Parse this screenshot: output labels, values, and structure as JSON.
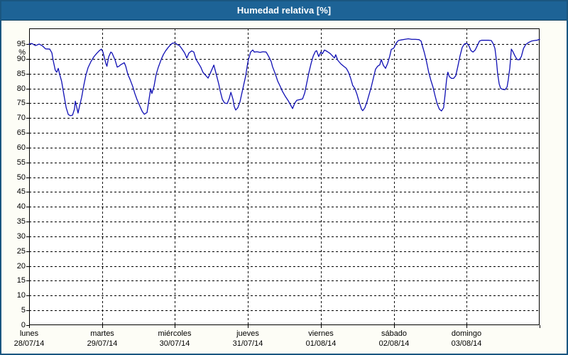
{
  "window": {
    "title": "Humedad relativa [%]"
  },
  "chart_data": {
    "type": "line",
    "title": "Humedad relativa [%]",
    "ylabel": "%",
    "xlabel": "",
    "ylim": [
      0,
      100.3
    ],
    "x_range_hours": [
      0,
      168
    ],
    "grid": "dashed",
    "legend": "none",
    "line_color": "#0f0fb4",
    "y_tick_labels": [
      0,
      5,
      10,
      15,
      20,
      25,
      30,
      35,
      40,
      45,
      50,
      55,
      60,
      65,
      70,
      75,
      80,
      85,
      90,
      95
    ],
    "x_days": [
      {
        "name": "lunes",
        "date": "28/07/14"
      },
      {
        "name": "martes",
        "date": "29/07/14"
      },
      {
        "name": "miércoles",
        "date": "30/07/14"
      },
      {
        "name": "jueves",
        "date": "31/07/14"
      },
      {
        "name": "viernes",
        "date": "01/08/14"
      },
      {
        "name": "sábado",
        "date": "02/08/14"
      },
      {
        "name": "domingo",
        "date": "03/08/14"
      }
    ],
    "series": [
      {
        "name": "Humedad relativa",
        "points": [
          [
            0,
            95
          ],
          [
            0.9,
            95.2
          ],
          [
            2.1,
            94.5
          ],
          [
            3.3,
            95
          ],
          [
            4.4,
            94.4
          ],
          [
            5.4,
            93.4
          ],
          [
            6.8,
            93.3
          ],
          [
            7.5,
            92
          ],
          [
            7.9,
            89.6
          ],
          [
            8.6,
            86.2
          ],
          [
            9.1,
            85.5
          ],
          [
            9.6,
            86.8
          ],
          [
            10,
            85
          ],
          [
            10.7,
            82.4
          ],
          [
            11.5,
            77.6
          ],
          [
            12.2,
            73.5
          ],
          [
            12.9,
            71.2
          ],
          [
            13.6,
            70.8
          ],
          [
            14.3,
            71
          ],
          [
            14.9,
            73
          ],
          [
            15.2,
            75.7
          ],
          [
            15.7,
            73.5
          ],
          [
            16.1,
            71.7
          ],
          [
            16.6,
            74
          ],
          [
            17.3,
            77
          ],
          [
            18,
            81
          ],
          [
            18.7,
            84.5
          ],
          [
            19.4,
            87
          ],
          [
            20.3,
            89
          ],
          [
            21.3,
            90.7
          ],
          [
            22.2,
            91.8
          ],
          [
            23.1,
            92.8
          ],
          [
            23.8,
            93.3
          ],
          [
            24.3,
            92.3
          ],
          [
            24.8,
            90.3
          ],
          [
            25.3,
            88.3
          ],
          [
            25.6,
            87.5
          ],
          [
            26.2,
            90.7
          ],
          [
            26.9,
            92.3
          ],
          [
            27.3,
            92
          ],
          [
            28.3,
            89.6
          ],
          [
            29,
            87.2
          ],
          [
            29.7,
            87.6
          ],
          [
            30.1,
            88
          ],
          [
            31.3,
            88.7
          ],
          [
            31.8,
            87.5
          ],
          [
            32.5,
            84.7
          ],
          [
            33.2,
            83.1
          ],
          [
            34.1,
            80.7
          ],
          [
            34.8,
            78.3
          ],
          [
            35.5,
            76.3
          ],
          [
            36.5,
            73.9
          ],
          [
            37.2,
            72.3
          ],
          [
            37.9,
            71.3
          ],
          [
            38.8,
            71.9
          ],
          [
            40,
            79.9
          ],
          [
            40.4,
            78.3
          ],
          [
            41.1,
            80.7
          ],
          [
            41.8,
            84.7
          ],
          [
            42.5,
            87.1
          ],
          [
            43.5,
            89.9
          ],
          [
            44.2,
            91.5
          ],
          [
            44.9,
            92.7
          ],
          [
            45.8,
            93.9
          ],
          [
            46.5,
            94.7
          ],
          [
            47.2,
            95.3
          ],
          [
            48,
            95.4
          ],
          [
            48.8,
            94.8
          ],
          [
            49.5,
            94.5
          ],
          [
            50.2,
            93.5
          ],
          [
            51.2,
            92
          ],
          [
            51.9,
            90.3
          ],
          [
            52.6,
            92
          ],
          [
            53.5,
            92.7
          ],
          [
            54.2,
            92.3
          ],
          [
            54.9,
            89.9
          ],
          [
            55.8,
            88.4
          ],
          [
            56.5,
            87.2
          ],
          [
            57.2,
            85.5
          ],
          [
            58.2,
            84.3
          ],
          [
            58.9,
            83.5
          ],
          [
            59.6,
            85.1
          ],
          [
            60.5,
            87.2
          ],
          [
            60.8,
            87.9
          ],
          [
            61.7,
            84.3
          ],
          [
            62.4,
            81.5
          ],
          [
            62.9,
            79.1
          ],
          [
            63.6,
            76.3
          ],
          [
            64.3,
            75.1
          ],
          [
            65.2,
            74.9
          ],
          [
            65.9,
            76.7
          ],
          [
            66.4,
            78.7
          ],
          [
            67.1,
            76.3
          ],
          [
            67.5,
            73.9
          ],
          [
            68,
            72.7
          ],
          [
            68.7,
            73.5
          ],
          [
            69.4,
            75.5
          ],
          [
            69.9,
            77.9
          ],
          [
            70.6,
            81.2
          ],
          [
            71.3,
            84.3
          ],
          [
            71.7,
            87.2
          ],
          [
            72.2,
            89.9
          ],
          [
            72.9,
            92.3
          ],
          [
            73.6,
            93
          ],
          [
            74.1,
            92.3
          ],
          [
            75,
            92.4
          ],
          [
            76,
            92.2
          ],
          [
            77,
            92.4
          ],
          [
            78,
            92.3
          ],
          [
            78.3,
            91.8
          ],
          [
            79,
            90.5
          ],
          [
            79.7,
            89
          ],
          [
            80.1,
            87.4
          ],
          [
            81.1,
            84.7
          ],
          [
            81.8,
            82.5
          ],
          [
            82.5,
            81
          ],
          [
            83.4,
            79
          ],
          [
            84.4,
            77.2
          ],
          [
            85.3,
            75.8
          ],
          [
            86,
            74.5
          ],
          [
            86.7,
            73.2
          ],
          [
            87.4,
            75
          ],
          [
            88.1,
            76
          ],
          [
            89,
            76.2
          ],
          [
            90,
            76.5
          ],
          [
            90.7,
            78.5
          ],
          [
            91.4,
            82
          ],
          [
            92.1,
            85.5
          ],
          [
            92.8,
            88.5
          ],
          [
            93.5,
            91
          ],
          [
            94.2,
            92.5
          ],
          [
            94.6,
            92.8
          ],
          [
            95.3,
            90.8
          ],
          [
            96,
            92.3
          ],
          [
            96.5,
            91.7
          ],
          [
            97.2,
            93
          ],
          [
            98.1,
            92.5
          ],
          [
            99.1,
            91.8
          ],
          [
            100,
            90.8
          ],
          [
            100.5,
            90.3
          ],
          [
            100.9,
            91.4
          ],
          [
            101.6,
            89.5
          ],
          [
            102.6,
            88.3
          ],
          [
            103.5,
            87.5
          ],
          [
            104.4,
            86.8
          ],
          [
            105.1,
            85.5
          ],
          [
            105.8,
            83.5
          ],
          [
            106.5,
            81
          ],
          [
            107.2,
            80
          ],
          [
            107.9,
            78
          ],
          [
            108.6,
            75.5
          ],
          [
            109.4,
            73
          ],
          [
            109.8,
            72.5
          ],
          [
            110.5,
            73.5
          ],
          [
            111.2,
            75.5
          ],
          [
            111.9,
            78
          ],
          [
            112.6,
            80.5
          ],
          [
            113.3,
            83.5
          ],
          [
            114,
            86.5
          ],
          [
            114.7,
            87.5
          ],
          [
            115.4,
            88
          ],
          [
            115.9,
            89.8
          ],
          [
            116.6,
            87.8
          ],
          [
            117.3,
            86.8
          ],
          [
            118,
            88.5
          ],
          [
            118.7,
            91
          ],
          [
            119.2,
            93.2
          ],
          [
            120,
            93.6
          ],
          [
            120.8,
            95.3
          ],
          [
            121.5,
            96.2
          ],
          [
            122.4,
            96.4
          ],
          [
            123.6,
            96.6
          ],
          [
            124.8,
            96.8
          ],
          [
            125.9,
            96.6
          ],
          [
            127.1,
            96.6
          ],
          [
            128.3,
            96.5
          ],
          [
            129,
            96
          ],
          [
            129.4,
            94.5
          ],
          [
            130.1,
            92
          ],
          [
            130.8,
            89
          ],
          [
            131.5,
            85.5
          ],
          [
            132.2,
            82.8
          ],
          [
            132.9,
            80.5
          ],
          [
            133.6,
            77.5
          ],
          [
            134.3,
            74.8
          ],
          [
            135,
            73
          ],
          [
            135.7,
            72.4
          ],
          [
            136.4,
            73.5
          ],
          [
            136.9,
            78
          ],
          [
            137.4,
            83
          ],
          [
            137.8,
            85.5
          ],
          [
            138.3,
            84
          ],
          [
            139,
            83.4
          ],
          [
            139.7,
            83.4
          ],
          [
            140.4,
            84.3
          ],
          [
            141.1,
            87.5
          ],
          [
            141.8,
            91
          ],
          [
            142.5,
            93.8
          ],
          [
            143.2,
            95
          ],
          [
            144,
            95.3
          ],
          [
            144.7,
            94.5
          ],
          [
            145.4,
            92.8
          ],
          [
            146.1,
            92.3
          ],
          [
            146.8,
            93
          ],
          [
            147.5,
            94.5
          ],
          [
            148.2,
            96
          ],
          [
            148.9,
            96.3
          ],
          [
            150,
            96.3
          ],
          [
            151.2,
            96.3
          ],
          [
            152.1,
            96.2
          ],
          [
            152.8,
            95
          ],
          [
            153.3,
            93.5
          ],
          [
            153.8,
            89.5
          ],
          [
            154.2,
            85
          ],
          [
            154.7,
            81.5
          ],
          [
            155.2,
            80
          ],
          [
            155.9,
            79.7
          ],
          [
            156.6,
            79.6
          ],
          [
            157.3,
            80.5
          ],
          [
            157.7,
            83
          ],
          [
            158.2,
            87
          ],
          [
            158.7,
            93.3
          ],
          [
            159.2,
            92.5
          ],
          [
            159.9,
            91
          ],
          [
            160.6,
            89.8
          ],
          [
            161.3,
            89.7
          ],
          [
            162,
            90.8
          ],
          [
            162.7,
            93.5
          ],
          [
            163.4,
            94.8
          ],
          [
            164.3,
            95.5
          ],
          [
            165.3,
            96
          ],
          [
            166.2,
            96.2
          ],
          [
            167.1,
            96.3
          ],
          [
            168,
            96.6
          ]
        ]
      }
    ]
  },
  "colors": {
    "title_bar_bg": "#1d6396",
    "window_border": "#1a5680",
    "window_bg": "#fdfdf6",
    "plot_bg": "#ffffff",
    "grid": "#000000",
    "line": "#0f0fb4",
    "text": "#000000",
    "title_text": "#ffffff"
  }
}
